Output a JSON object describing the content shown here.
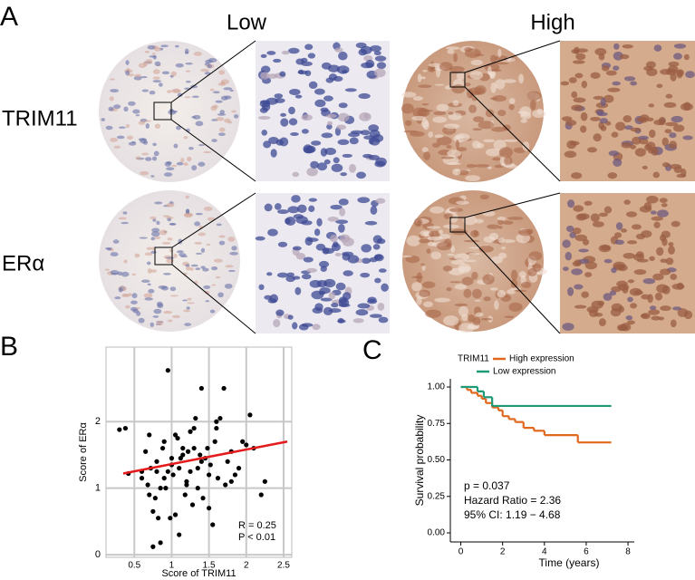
{
  "figure": {
    "panel_a": {
      "letter": "A",
      "col_low": "Low",
      "col_high": "High",
      "row_1": "TRIM11",
      "row_2": "ERα"
    }
  },
  "chart_data": [
    {
      "type": "scatter",
      "letter": "B",
      "x_label": "Score of TRIM11",
      "y_label": "Score of ERα",
      "x": [
        0.3,
        0.38,
        0.42,
        0.6,
        0.65,
        0.68,
        0.7,
        0.72,
        0.75,
        0.78,
        0.8,
        0.82,
        0.85,
        0.88,
        0.9,
        0.92,
        0.95,
        0.98,
        1.0,
        1.02,
        1.05,
        1.08,
        1.1,
        1.12,
        1.15,
        1.18,
        1.2,
        1.22,
        1.25,
        1.28,
        1.3,
        1.32,
        1.35,
        1.38,
        1.4,
        1.42,
        1.45,
        1.48,
        1.5,
        1.52,
        1.55,
        1.58,
        1.6,
        1.62,
        1.65,
        1.7,
        1.72,
        1.75,
        1.8,
        1.85,
        1.9,
        1.95,
        2.0,
        2.05,
        2.1,
        2.2,
        2.25,
        0.75,
        0.85,
        0.95,
        1.05,
        1.15,
        1.25,
        1.35,
        0.7,
        0.9,
        1.1,
        1.3,
        1.5,
        0.8,
        1.0,
        1.2,
        1.6,
        1.8,
        0.6,
        1.4
      ],
      "values": [
        1.88,
        1.9,
        1.22,
        1.15,
        1.55,
        1.05,
        0.9,
        1.3,
        0.12,
        0.85,
        1.4,
        0.55,
        0.18,
        1.6,
        1.7,
        1.0,
        2.77,
        0.55,
        1.35,
        1.2,
        1.8,
        1.75,
        0.3,
        1.45,
        1.6,
        0.9,
        1.1,
        1.55,
        1.25,
        0.75,
        1.9,
        2.05,
        1.3,
        1.5,
        2.5,
        0.85,
        1.45,
        1.6,
        1.2,
        1.35,
        0.45,
        1.7,
        1.9,
        1.15,
        2.05,
        2.5,
        1.05,
        1.4,
        1.55,
        1.2,
        1.3,
        1.7,
        1.65,
        2.1,
        1.6,
        0.9,
        1.1,
        0.65,
        1.0,
        1.25,
        0.6,
        1.5,
        1.85,
        1.0,
        1.8,
        1.15,
        1.3,
        1.6,
        0.7,
        1.25,
        1.45,
        1.05,
        2.0,
        1.1,
        1.25,
        1.4
      ],
      "color": "#000000",
      "fit": {
        "x": [
          0.35,
          2.55
        ],
        "values": [
          1.22,
          1.7
        ],
        "color": "#e41a1c"
      },
      "annotations": [
        "R = 0.25",
        "P < 0.01"
      ],
      "xlim": [
        0.12,
        2.61
      ],
      "ylim": [
        -0.04,
        3.12
      ],
      "xticks": [
        0.5,
        1,
        1.5,
        2,
        2.5
      ],
      "yticks": [
        0,
        1,
        2
      ],
      "grid": true
    },
    {
      "type": "step",
      "letter": "C",
      "x_label": "Time (years)",
      "y_label": "Survival probability",
      "legend_title": "TRIM11",
      "series": [
        {
          "name": "High expression",
          "color": "#e0671c",
          "x": [
            0,
            0.3,
            0.5,
            0.8,
            1.0,
            1.2,
            1.5,
            1.8,
            2.0,
            2.3,
            2.6,
            3.0,
            3.5,
            4.0,
            5.6,
            7.2
          ],
          "values": [
            1,
            0.98,
            0.96,
            0.94,
            0.92,
            0.89,
            0.86,
            0.84,
            0.8,
            0.78,
            0.76,
            0.72,
            0.7,
            0.67,
            0.62,
            0.62
          ]
        },
        {
          "name": "Low expression",
          "color": "#1f9a76",
          "x": [
            0,
            0.8,
            1.1,
            1.5,
            7.2
          ],
          "values": [
            1,
            0.97,
            0.93,
            0.87,
            0.87
          ]
        }
      ],
      "annotations": [
        "p = 0.037",
        "Hazard Ratio = 2.36",
        "95% CI: 1.19 − 4.68"
      ],
      "xlim": [
        -0.5,
        8.3
      ],
      "ylim": [
        -0.062,
        1.056
      ],
      "xticks": [
        0,
        2,
        4,
        6,
        8
      ],
      "yticks": [
        {
          "value": 0,
          "label": "0.00"
        },
        {
          "value": 0.25,
          "label": "0.25"
        },
        {
          "value": 0.5,
          "label": "0.50"
        },
        {
          "value": 0.75,
          "label": "0.75"
        },
        {
          "value": 1,
          "label": "1.00"
        }
      ]
    }
  ]
}
